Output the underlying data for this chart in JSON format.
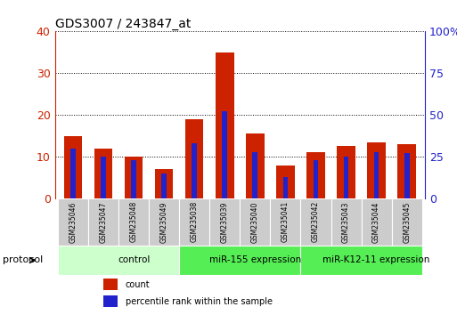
{
  "title": "GDS3007 / 243847_at",
  "categories": [
    "GSM235046",
    "GSM235047",
    "GSM235048",
    "GSM235049",
    "GSM235038",
    "GSM235039",
    "GSM235040",
    "GSM235041",
    "GSM235042",
    "GSM235043",
    "GSM235044",
    "GSM235045"
  ],
  "count_values": [
    15,
    12,
    10,
    7,
    19,
    35,
    15.5,
    8,
    11,
    12.5,
    13.5,
    13
  ],
  "percentile_values": [
    30,
    25,
    23,
    15,
    33,
    52,
    28,
    13,
    23,
    25,
    28,
    27
  ],
  "count_color": "#cc2200",
  "percentile_color": "#2222cc",
  "left_ylim": [
    0,
    40
  ],
  "right_ylim": [
    0,
    100
  ],
  "left_yticks": [
    0,
    10,
    20,
    30,
    40
  ],
  "right_yticks": [
    0,
    25,
    50,
    75,
    100
  ],
  "right_yticklabels": [
    "0",
    "25",
    "50",
    "75",
    "100%"
  ],
  "groups": [
    {
      "label": "control",
      "start": 0,
      "end": 4,
      "color": "#ccffcc"
    },
    {
      "label": "miR-155 expression",
      "start": 4,
      "end": 8,
      "color": "#55ee55"
    },
    {
      "label": "miR-K12-11 expression",
      "start": 8,
      "end": 12,
      "color": "#55ee55"
    }
  ],
  "bar_width": 0.6,
  "protocol_label": "protocol",
  "legend_count_label": "count",
  "legend_percentile_label": "percentile rank within the sample",
  "background_color": "#ffffff",
  "sample_box_color": "#cccccc",
  "border_color": "#999999"
}
